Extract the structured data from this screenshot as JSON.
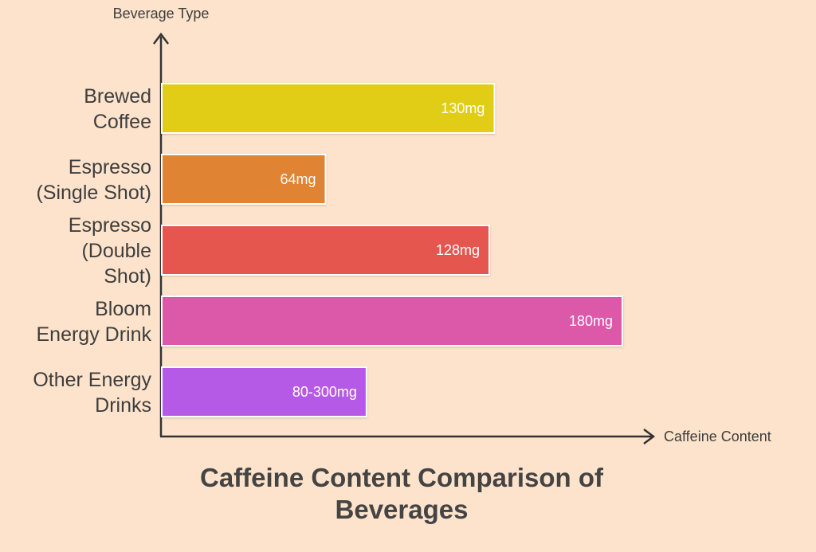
{
  "chart_data": {
    "type": "bar",
    "orientation": "horizontal",
    "title": "Caffeine Content Comparison of Beverages",
    "xlabel": "Caffeine Content",
    "ylabel": "Beverage Type",
    "categories": [
      "Brewed Coffee",
      "Espresso (Single Shot)",
      "Espresso (Double Shot)",
      "Bloom Energy Drink",
      "Other Energy Drinks"
    ],
    "values": [
      130,
      64,
      128,
      180,
      80
    ],
    "value_labels": [
      "130mg",
      "64mg",
      "128mg",
      "180mg",
      "80-300mg"
    ],
    "colors": [
      "#e2cd18",
      "#e08333",
      "#e5574f",
      "#dc58a8",
      "#b55ae6"
    ],
    "grid": false,
    "legend": "none"
  }
}
